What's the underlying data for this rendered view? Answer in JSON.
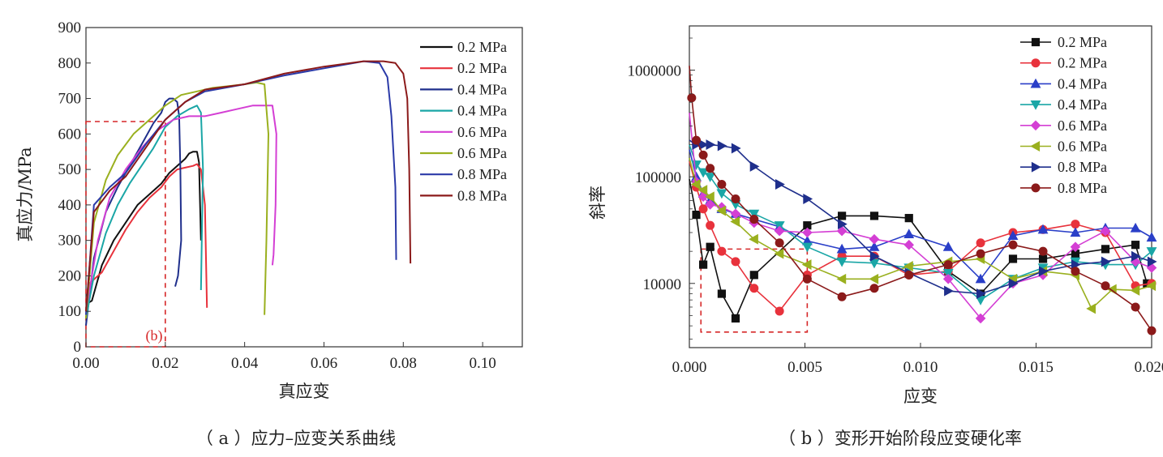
{
  "captions": {
    "a": "（ a ）应力–应变关系曲线",
    "b": "（ b ）变形开始阶段应变硬化率"
  },
  "chart_data": [
    {
      "type": "line",
      "xlabel": "真应变",
      "ylabel": "真应力/MPa",
      "xlim": [
        0,
        0.11
      ],
      "ylim": [
        0,
        900
      ],
      "x_ticks": [
        "0.00",
        "0.02",
        "0.04",
        "0.06",
        "0.08",
        "0.10"
      ],
      "y_ticks": [
        "0",
        "100",
        "200",
        "300",
        "400",
        "500",
        "600",
        "700",
        "800",
        "900"
      ],
      "legend_position": "top-right",
      "annotation": {
        "text": "(b)",
        "color": "#d62728",
        "box": {
          "x": [
            0,
            0.02
          ],
          "y": [
            0,
            635
          ]
        }
      },
      "series": [
        {
          "name": "0.2 MPa",
          "color": "#111111",
          "x": [
            0.0,
            0.0015,
            0.004,
            0.007,
            0.01,
            0.013,
            0.016,
            0.019,
            0.021,
            0.023,
            0.024,
            0.025,
            0.026,
            0.027,
            0.028,
            0.0285,
            0.029
          ],
          "y": [
            120,
            130,
            230,
            300,
            350,
            400,
            430,
            460,
            490,
            510,
            520,
            530,
            545,
            550,
            550,
            520,
            300
          ]
        },
        {
          "name": "0.2 MPa",
          "color": "#e8323c",
          "x": [
            0.0,
            0.001,
            0.004,
            0.007,
            0.01,
            0.013,
            0.016,
            0.019,
            0.021,
            0.023,
            0.025,
            0.027,
            0.028,
            0.029,
            0.03,
            0.0305
          ],
          "y": [
            130,
            180,
            210,
            270,
            330,
            380,
            420,
            450,
            480,
            500,
            505,
            510,
            515,
            500,
            400,
            110
          ]
        },
        {
          "name": "0.4 MPa",
          "color": "#1f2f8c",
          "x": [
            0.0,
            0.002,
            0.005,
            0.008,
            0.011,
            0.014,
            0.017,
            0.019,
            0.02,
            0.021,
            0.022,
            0.023,
            0.0235,
            0.0238,
            0.024,
            0.0232,
            0.0225
          ],
          "y": [
            60,
            250,
            380,
            450,
            510,
            570,
            630,
            660,
            690,
            700,
            700,
            690,
            650,
            500,
            300,
            200,
            170
          ]
        },
        {
          "name": "0.4 MPa",
          "color": "#1aa6a6",
          "x": [
            0.0,
            0.002,
            0.005,
            0.008,
            0.011,
            0.014,
            0.017,
            0.02,
            0.023,
            0.026,
            0.028,
            0.029,
            0.0295,
            0.0292,
            0.029
          ],
          "y": [
            80,
            200,
            320,
            400,
            460,
            510,
            560,
            620,
            650,
            670,
            680,
            660,
            500,
            300,
            160
          ]
        },
        {
          "name": "0.6 MPa",
          "color": "#d43fd4",
          "x": [
            0.0,
            0.003,
            0.006,
            0.01,
            0.014,
            0.018,
            0.022,
            0.026,
            0.03,
            0.034,
            0.038,
            0.042,
            0.045,
            0.047,
            0.048,
            0.0478,
            0.0473,
            0.047
          ],
          "y": [
            100,
            300,
            420,
            500,
            560,
            610,
            640,
            650,
            650,
            660,
            670,
            680,
            680,
            680,
            600,
            400,
            260,
            230
          ]
        },
        {
          "name": "0.6 MPa",
          "color": "#9ab01f",
          "x": [
            0.0,
            0.002,
            0.005,
            0.008,
            0.012,
            0.016,
            0.02,
            0.024,
            0.028,
            0.032,
            0.036,
            0.04,
            0.043,
            0.045,
            0.046,
            0.0455,
            0.045
          ],
          "y": [
            80,
            350,
            470,
            540,
            600,
            640,
            680,
            710,
            720,
            730,
            735,
            740,
            745,
            740,
            600,
            300,
            90
          ]
        },
        {
          "name": "0.8 MPa",
          "color": "#2b3aa8",
          "x": [
            0.0,
            0.002,
            0.006,
            0.01,
            0.015,
            0.02,
            0.025,
            0.03,
            0.04,
            0.05,
            0.06,
            0.07,
            0.074,
            0.076,
            0.077,
            0.078,
            0.0782
          ],
          "y": [
            90,
            400,
            450,
            490,
            570,
            640,
            690,
            720,
            740,
            765,
            785,
            805,
            800,
            760,
            650,
            450,
            245
          ]
        },
        {
          "name": "0.8 MPa",
          "color": "#8b1a1a",
          "x": [
            0.0,
            0.002,
            0.006,
            0.01,
            0.015,
            0.02,
            0.025,
            0.03,
            0.04,
            0.05,
            0.06,
            0.07,
            0.075,
            0.078,
            0.08,
            0.081,
            0.0815,
            0.0818
          ],
          "y": [
            100,
            380,
            440,
            480,
            560,
            640,
            690,
            725,
            740,
            770,
            790,
            805,
            805,
            800,
            770,
            700,
            500,
            235
          ]
        }
      ]
    },
    {
      "type": "line",
      "xlabel": "应变",
      "ylabel": "斜率",
      "yscale": "log",
      "xlim": [
        0,
        0.02
      ],
      "ylim": [
        2500,
        2600000
      ],
      "x_ticks": [
        "0.000",
        "0.005",
        "0.010",
        "0.015",
        "0.020"
      ],
      "y_ticks": [
        "10000",
        "100000",
        "1000000"
      ],
      "legend_position": "top-right",
      "annotation": {
        "color": "#d62728",
        "box": {
          "x": [
            0.0005,
            0.0051
          ],
          "y": [
            3500,
            21000
          ]
        }
      },
      "series": [
        {
          "name": "0.2 MPa",
          "color": "#111111",
          "marker": "square",
          "x": [
            0.0,
            0.0003,
            0.0006,
            0.0009,
            0.0014,
            0.002,
            0.0028,
            0.0051,
            0.0066,
            0.008,
            0.0095,
            0.0112,
            0.0126,
            0.014,
            0.0153,
            0.0167,
            0.018,
            0.0193,
            0.0198
          ],
          "y": [
            95000,
            44000,
            15000,
            22000,
            8000,
            4700,
            12000,
            35000,
            43000,
            43000,
            41000,
            13000,
            8000,
            17000,
            17000,
            19000,
            21000,
            23000,
            10000
          ]
        },
        {
          "name": "0.2 MPa",
          "color": "#e8323c",
          "marker": "circle",
          "x": [
            0.0,
            0.0003,
            0.0006,
            0.0009,
            0.0014,
            0.002,
            0.0028,
            0.0039,
            0.0051,
            0.0066,
            0.008,
            0.0095,
            0.0112,
            0.0126,
            0.014,
            0.0153,
            0.0167,
            0.018,
            0.0193,
            0.02
          ],
          "y": [
            140000,
            80000,
            50000,
            35000,
            20000,
            16000,
            9000,
            5500,
            12000,
            18000,
            18000,
            12000,
            13000,
            24000,
            30000,
            32000,
            36000,
            30000,
            9500,
            10000
          ]
        },
        {
          "name": "0.4 MPa",
          "color": "#2a3fc8",
          "marker": "triangle-up",
          "x": [
            0.0,
            0.0003,
            0.0006,
            0.0009,
            0.0014,
            0.002,
            0.0028,
            0.0039,
            0.0051,
            0.0066,
            0.008,
            0.0095,
            0.0112,
            0.0126,
            0.014,
            0.0153,
            0.0167,
            0.018,
            0.0193,
            0.02
          ],
          "y": [
            180000,
            100000,
            70000,
            60000,
            50000,
            45000,
            40000,
            34000,
            25000,
            21000,
            22000,
            29000,
            22000,
            11000,
            28000,
            32000,
            30000,
            33000,
            33000,
            27000
          ]
        },
        {
          "name": "0.4 MPa",
          "color": "#1aa6a6",
          "marker": "triangle-down",
          "x": [
            0.0,
            0.0003,
            0.0006,
            0.0009,
            0.0014,
            0.002,
            0.0028,
            0.0039,
            0.0051,
            0.0066,
            0.008,
            0.0095,
            0.0112,
            0.0126,
            0.014,
            0.0153,
            0.0167,
            0.018,
            0.0193,
            0.02
          ],
          "y": [
            200000,
            130000,
            110000,
            100000,
            70000,
            55000,
            45000,
            35000,
            22000,
            16000,
            15500,
            14000,
            12500,
            7000,
            11000,
            14000,
            16000,
            15000,
            15000,
            20000
          ]
        },
        {
          "name": "0.6 MPa",
          "color": "#d43fd4",
          "marker": "diamond",
          "x": [
            0.0,
            0.0003,
            0.0006,
            0.0009,
            0.0014,
            0.002,
            0.0028,
            0.0039,
            0.0051,
            0.0066,
            0.008,
            0.0095,
            0.0112,
            0.0126,
            0.014,
            0.0153,
            0.0167,
            0.018,
            0.0193,
            0.02
          ],
          "y": [
            400000,
            90000,
            65000,
            55000,
            52000,
            45000,
            37000,
            31000,
            30000,
            31000,
            26000,
            23000,
            11000,
            4700,
            10000,
            12000,
            22000,
            31000,
            16000,
            14000
          ]
        },
        {
          "name": "0.6 MPa",
          "color": "#9ab01f",
          "marker": "triangle-left",
          "x": [
            0.0,
            0.0003,
            0.0006,
            0.0009,
            0.0014,
            0.002,
            0.0028,
            0.0039,
            0.0051,
            0.0066,
            0.008,
            0.0095,
            0.0112,
            0.0126,
            0.014,
            0.0153,
            0.0167,
            0.0174,
            0.0183,
            0.0193,
            0.02
          ],
          "y": [
            150000,
            85000,
            75000,
            65000,
            48000,
            38000,
            26000,
            19000,
            15000,
            11000,
            11000,
            14500,
            16000,
            17000,
            11000,
            13000,
            12000,
            5800,
            8800,
            8600,
            9500
          ]
        },
        {
          "name": "0.8 MPa",
          "color": "#1f2f8c",
          "marker": "triangle-right",
          "x": [
            0.0,
            0.0003,
            0.0006,
            0.0009,
            0.0014,
            0.002,
            0.0028,
            0.0039,
            0.0051,
            0.0066,
            0.008,
            0.0095,
            0.0112,
            0.0126,
            0.014,
            0.0153,
            0.0167,
            0.018,
            0.0193,
            0.02
          ],
          "y": [
            220000,
            200000,
            200000,
            200000,
            195000,
            185000,
            125000,
            85000,
            62000,
            36000,
            18000,
            12500,
            8500,
            8000,
            10000,
            13000,
            15000,
            16000,
            18000,
            16000
          ]
        },
        {
          "name": "0.8 MPa",
          "color": "#8b1a1a",
          "marker": "circle",
          "x": [
            0.0,
            0.0001,
            0.0003,
            0.0006,
            0.0009,
            0.0014,
            0.002,
            0.0028,
            0.0039,
            0.0051,
            0.0066,
            0.008,
            0.0095,
            0.0112,
            0.0126,
            0.014,
            0.0153,
            0.0167,
            0.018,
            0.0193,
            0.02
          ],
          "y": [
            1100000,
            550000,
            220000,
            160000,
            120000,
            85000,
            62000,
            40000,
            24000,
            11000,
            7500,
            9000,
            12000,
            15000,
            19000,
            23000,
            20000,
            13000,
            9500,
            6000,
            3600
          ]
        }
      ]
    }
  ]
}
